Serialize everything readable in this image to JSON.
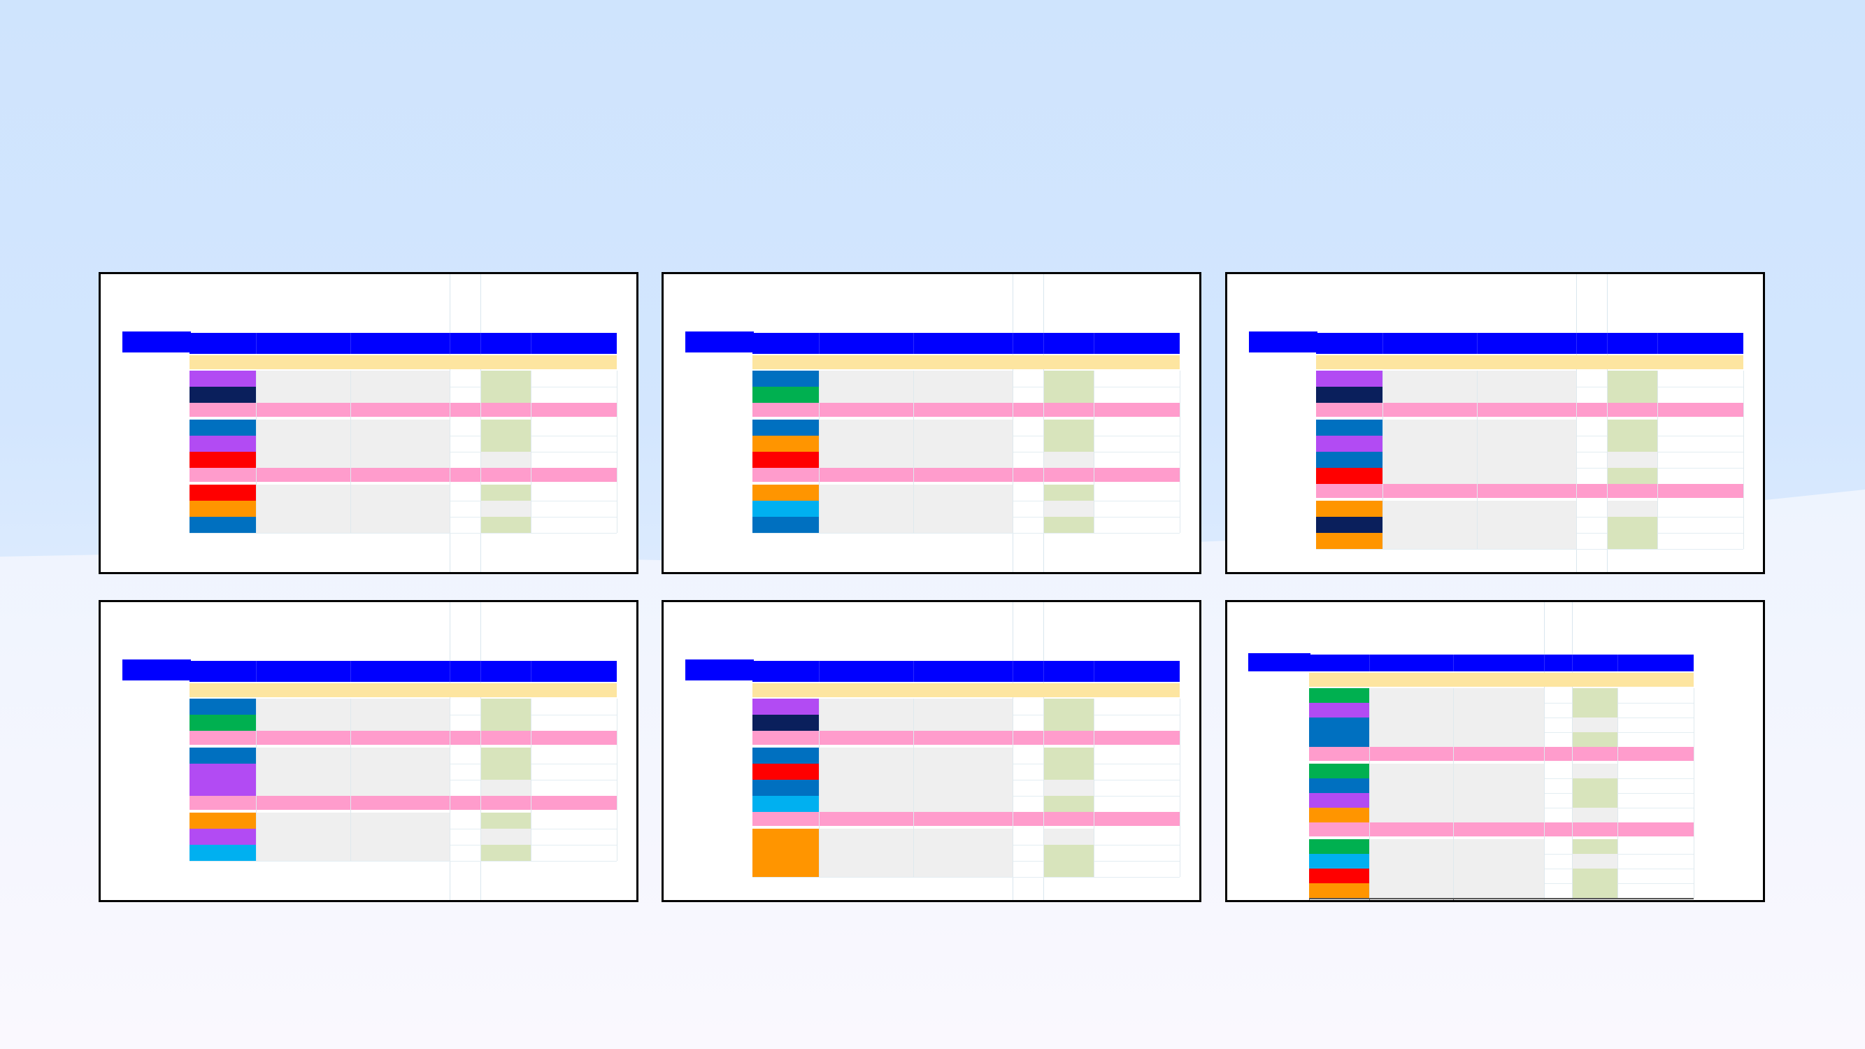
{
  "slide": {
    "title": "",
    "thumbnails": [
      {
        "id": 1,
        "swatches": [
          "purple",
          "navy",
          "pink",
          "blue",
          "purple",
          "red",
          "pink",
          "red",
          "orange",
          "blue"
        ]
      },
      {
        "id": 2,
        "swatches": [
          "blue",
          "green",
          "pink",
          "blue",
          "orange",
          "red",
          "pink",
          "orange",
          "cyan",
          "blue"
        ]
      },
      {
        "id": 3,
        "swatches": [
          "purple",
          "navy",
          "pink",
          "blue",
          "purple",
          "blue",
          "red",
          "pink",
          "orange",
          "navy",
          "orange"
        ]
      },
      {
        "id": 4,
        "swatches": [
          "blue",
          "green",
          "pink",
          "blue",
          "purple",
          "purple",
          "pink",
          "orange",
          "purple",
          "cyan"
        ]
      },
      {
        "id": 5,
        "swatches": [
          "purple",
          "navy",
          "pink",
          "blue",
          "red",
          "blue",
          "cyan",
          "pink",
          "orange",
          "orange",
          "orange"
        ]
      },
      {
        "id": 6,
        "swatches": [
          "green",
          "purple",
          "blue",
          "blue",
          "pink",
          "green",
          "blue",
          "purple",
          "orange",
          "pink",
          "green",
          "cyan",
          "red",
          "orange"
        ]
      }
    ]
  },
  "colors": {
    "header_blue": "#0000ff",
    "yellow_band": "#fde5a0",
    "pink_band": "#ff9ccc",
    "purple": "#b24bf3",
    "navy": "#0a1f5c",
    "blue": "#0070c0",
    "red": "#ff0000",
    "orange": "#ff9500",
    "green": "#00b050",
    "cyan": "#00b0f0",
    "light_gray": "#efefef",
    "light_green": "#d8e4bc",
    "background": "#cfe4fd"
  }
}
